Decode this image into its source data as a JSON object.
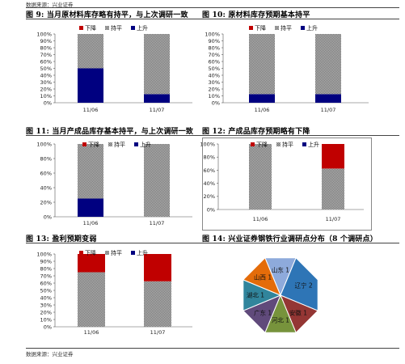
{
  "source_top": "数据来源：兴业证券",
  "source_bottom": "数据来源：兴业证券",
  "legend": [
    {
      "name": "下降",
      "color": "#c00000"
    },
    {
      "name": "持平",
      "color": "#9a9a9a"
    },
    {
      "name": "上升",
      "color": "#000080"
    }
  ],
  "colors": {
    "down": "#c00000",
    "flat": "#9a9a9a",
    "up": "#000080"
  },
  "titles": {
    "fig9": "图 9:  当月原材料库存略有持平，与上次调研一致",
    "fig10": "图 10:  原材料库存预期基本持平",
    "fig11": "图 11:  当月产成品库存基本持平，与上次调研一致",
    "fig12": "图 12:  产成品库存预期略有下降",
    "fig13": "图 13:  盈利预期变弱",
    "fig14": "图 14:  兴业证券钢铁行业调研点分布（8 个调研点）"
  },
  "chart_data": [
    {
      "id": "fig9",
      "type": "bar",
      "stacked": true,
      "categories": [
        "11/06",
        "11/07"
      ],
      "series": [
        {
          "name": "下降",
          "values": [
            0,
            0
          ]
        },
        {
          "name": "持平",
          "values": [
            50,
            87.5
          ]
        },
        {
          "name": "上升",
          "values": [
            50,
            12.5
          ]
        }
      ],
      "yticks": [
        "0%",
        "10%",
        "20%",
        "30%",
        "40%",
        "50%",
        "60%",
        "70%",
        "80%",
        "90%",
        "100%"
      ],
      "ylim": [
        0,
        100
      ],
      "legend_position": "top-right"
    },
    {
      "id": "fig10",
      "type": "bar",
      "stacked": true,
      "categories": [
        "11/06",
        "11/07"
      ],
      "series": [
        {
          "name": "下降",
          "values": [
            0,
            0
          ]
        },
        {
          "name": "持平",
          "values": [
            87.5,
            87.5
          ]
        },
        {
          "name": "上升",
          "values": [
            12.5,
            12.5
          ]
        }
      ],
      "yticks": [
        "0%",
        "10%",
        "20%",
        "30%",
        "40%",
        "50%",
        "60%",
        "70%",
        "80%",
        "90%",
        "100%"
      ],
      "ylim": [
        0,
        100
      ],
      "legend_position": "top-right"
    },
    {
      "id": "fig11",
      "type": "bar",
      "stacked": true,
      "categories": [
        "11/06",
        "11/07"
      ],
      "series": [
        {
          "name": "下降",
          "values": [
            0,
            0
          ]
        },
        {
          "name": "持平",
          "values": [
            75,
            100
          ]
        },
        {
          "name": "上升",
          "values": [
            25,
            0
          ]
        }
      ],
      "yticks": [
        "0%",
        "20%",
        "40%",
        "60%",
        "80%",
        "100%"
      ],
      "ylim": [
        0,
        100
      ],
      "legend_position": "top-right"
    },
    {
      "id": "fig12",
      "type": "bar",
      "stacked": true,
      "categories": [
        "11/06",
        "11/07"
      ],
      "series": [
        {
          "name": "下降",
          "values": [
            0,
            37.5
          ]
        },
        {
          "name": "持平",
          "values": [
            100,
            62.5
          ]
        },
        {
          "name": "上升",
          "values": [
            0,
            0
          ]
        }
      ],
      "yticks": [
        "0%",
        "20%",
        "40%",
        "60%",
        "80%",
        "100%"
      ],
      "ylim": [
        0,
        100
      ],
      "legend_position": "top-right"
    },
    {
      "id": "fig13",
      "type": "bar",
      "stacked": true,
      "categories": [
        "11/06",
        "11/07"
      ],
      "series": [
        {
          "name": "下降",
          "values": [
            25,
            37.5
          ]
        },
        {
          "name": "持平",
          "values": [
            75,
            62.5
          ]
        },
        {
          "name": "上升",
          "values": [
            0,
            0
          ]
        }
      ],
      "yticks": [
        "0%",
        "10%",
        "20%",
        "30%",
        "40%",
        "50%",
        "60%",
        "70%",
        "80%",
        "90%",
        "100%"
      ],
      "ylim": [
        0,
        100
      ],
      "legend_position": "top-right"
    },
    {
      "id": "fig14",
      "type": "pie",
      "slices": [
        {
          "label": "山东 1",
          "value": 1,
          "color": "#8eaadb"
        },
        {
          "label": "辽宁 2",
          "value": 2,
          "color": "#2e75b6"
        },
        {
          "label": "安徽 1",
          "value": 1,
          "color": "#943634"
        },
        {
          "label": "河北 1",
          "value": 1,
          "color": "#77933c"
        },
        {
          "label": "广东 1",
          "value": 1,
          "color": "#604a7b"
        },
        {
          "label": "湖北 1",
          "value": 1,
          "color": "#31859c"
        },
        {
          "label": "山西 1",
          "value": 1,
          "color": "#e46c0a"
        }
      ]
    }
  ]
}
